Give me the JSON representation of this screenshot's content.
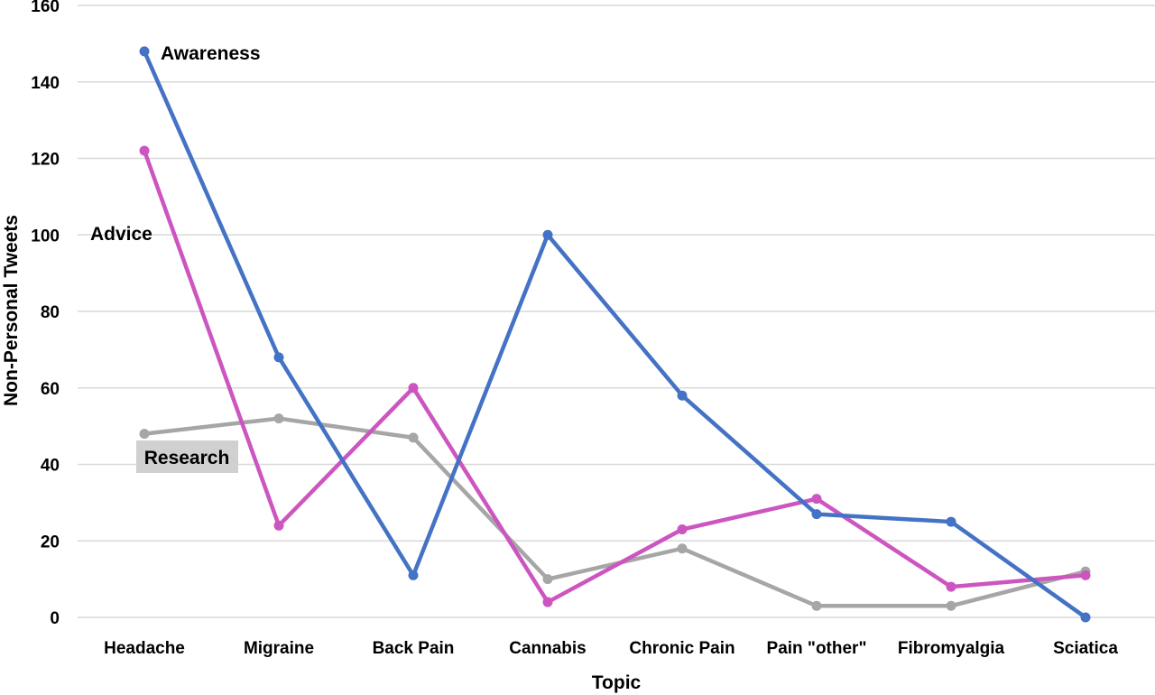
{
  "chart_data": {
    "type": "line",
    "xlabel": "Topic",
    "ylabel": "Non-Personal Tweets",
    "ylim": [
      0,
      160
    ],
    "yticks": [
      0,
      20,
      40,
      60,
      80,
      100,
      120,
      140,
      160
    ],
    "grid": true,
    "legend": "inline labels",
    "categories": [
      "Headache",
      "Migraine",
      "Back Pain",
      "Cannabis",
      "Chronic Pain",
      "Pain \"other\"",
      "Fibromyalgia",
      "Sciatica"
    ],
    "series": [
      {
        "name": "Awareness",
        "color": "#4472c4",
        "values": [
          148,
          68,
          11,
          100,
          58,
          27,
          25,
          0
        ]
      },
      {
        "name": "Advice",
        "color": "#cc55c0",
        "values": [
          122,
          24,
          60,
          4,
          23,
          31,
          8,
          11
        ]
      },
      {
        "name": "Research",
        "color": "#a6a6a6",
        "values": [
          48,
          52,
          47,
          10,
          18,
          3,
          3,
          12
        ]
      }
    ]
  }
}
